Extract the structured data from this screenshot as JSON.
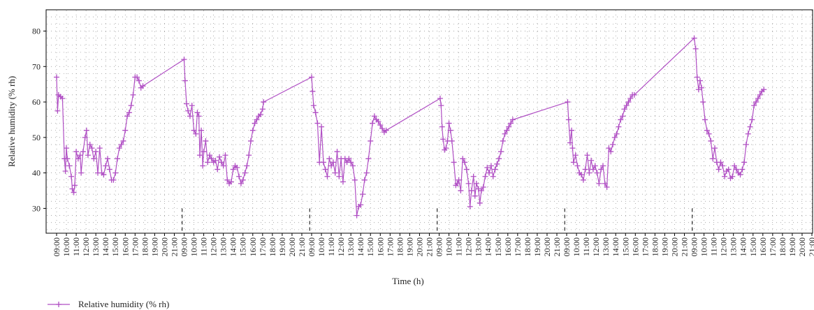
{
  "chart_data": {
    "type": "line",
    "title": "",
    "xlabel": "Time (h)",
    "ylabel": "Relative humidity (% rh)",
    "ylim": [
      23,
      86
    ],
    "y_ticks": [
      30,
      40,
      50,
      60,
      70,
      80
    ],
    "grid": true,
    "legend_position": "bottom-left",
    "line_color": "#b04fc4",
    "x_ticks": [
      "09:00",
      "10:00",
      "11:00",
      "12:00",
      "13:00",
      "14:00",
      "15:00",
      "16:00",
      "17:00",
      "18:00",
      "19:00",
      "20:00",
      "21:00",
      "09:00",
      "10:00",
      "11:00",
      "12:00",
      "13:00",
      "14:00",
      "15:00",
      "16:00",
      "17:00",
      "18:00",
      "19:00",
      "20:00",
      "21:00",
      "09:00",
      "10:00",
      "11:00",
      "12:00",
      "13:00",
      "14:00",
      "15:00",
      "16:00",
      "17:00",
      "18:00",
      "19:00",
      "20:00",
      "21:00",
      "09:00",
      "10:00",
      "11:00",
      "12:00",
      "13:00",
      "14:00",
      "15:00",
      "16:00",
      "17:00",
      "18:00",
      "19:00",
      "20:00",
      "21:00",
      "09:00",
      "10:00",
      "11:00",
      "12:00",
      "13:00",
      "14:00",
      "15:00",
      "16:00",
      "17:00",
      "18:00",
      "19:00",
      "20:00",
      "21:00",
      "09:00",
      "10:00",
      "11:00",
      "12:00",
      "13:00",
      "14:00",
      "15:00",
      "16:00",
      "17:00",
      "18:00",
      "19:00",
      "20:00",
      "21:00"
    ],
    "day_separators": [
      12.8,
      25.8,
      38.8,
      51.8,
      64.8
    ],
    "series": [
      {
        "name": "Relative humidity (% rh)",
        "points": [
          [
            0.0,
            67
          ],
          [
            0.1,
            57.5
          ],
          [
            0.2,
            62
          ],
          [
            0.4,
            61.5
          ],
          [
            0.6,
            61
          ],
          [
            0.8,
            44
          ],
          [
            0.9,
            40.5
          ],
          [
            1.0,
            47
          ],
          [
            1.1,
            44
          ],
          [
            1.3,
            42
          ],
          [
            1.5,
            39
          ],
          [
            1.6,
            35.5
          ],
          [
            1.75,
            34.5
          ],
          [
            1.85,
            36.5
          ],
          [
            2.0,
            46
          ],
          [
            2.2,
            44
          ],
          [
            2.4,
            45
          ],
          [
            2.5,
            40
          ],
          [
            2.7,
            46
          ],
          [
            2.9,
            50
          ],
          [
            3.05,
            52
          ],
          [
            3.2,
            45
          ],
          [
            3.4,
            48
          ],
          [
            3.6,
            47
          ],
          [
            3.8,
            44
          ],
          [
            4.0,
            46
          ],
          [
            4.2,
            40
          ],
          [
            4.4,
            47
          ],
          [
            4.6,
            40
          ],
          [
            4.8,
            39.5
          ],
          [
            5.0,
            42
          ],
          [
            5.2,
            44
          ],
          [
            5.4,
            41
          ],
          [
            5.6,
            38
          ],
          [
            5.8,
            38
          ],
          [
            6.0,
            40
          ],
          [
            6.2,
            44
          ],
          [
            6.4,
            47
          ],
          [
            6.6,
            48
          ],
          [
            6.8,
            49
          ],
          [
            7.0,
            52
          ],
          [
            7.2,
            56
          ],
          [
            7.4,
            57
          ],
          [
            7.6,
            59
          ],
          [
            7.8,
            62
          ],
          [
            8.0,
            67
          ],
          [
            8.2,
            67
          ],
          [
            8.4,
            66
          ],
          [
            8.6,
            64
          ],
          [
            8.8,
            64.5
          ],
          [
            13.0,
            72
          ],
          [
            13.1,
            66
          ],
          [
            13.25,
            59.5
          ],
          [
            13.4,
            57.5
          ],
          [
            13.6,
            56
          ],
          [
            13.8,
            59
          ],
          [
            14.0,
            52
          ],
          [
            14.2,
            51
          ],
          [
            14.35,
            57
          ],
          [
            14.5,
            56
          ],
          [
            14.6,
            45
          ],
          [
            14.75,
            52
          ],
          [
            14.9,
            42
          ],
          [
            15.0,
            46
          ],
          [
            15.2,
            49
          ],
          [
            15.4,
            43
          ],
          [
            15.6,
            45
          ],
          [
            15.8,
            44
          ],
          [
            16.0,
            43
          ],
          [
            16.2,
            43.5
          ],
          [
            16.4,
            41
          ],
          [
            16.6,
            44.5
          ],
          [
            16.8,
            43
          ],
          [
            17.0,
            42
          ],
          [
            17.2,
            45
          ],
          [
            17.4,
            38
          ],
          [
            17.6,
            37
          ],
          [
            17.8,
            37.5
          ],
          [
            18.0,
            41
          ],
          [
            18.2,
            42
          ],
          [
            18.4,
            41.5
          ],
          [
            18.6,
            39
          ],
          [
            18.8,
            37
          ],
          [
            19.0,
            38
          ],
          [
            19.2,
            40
          ],
          [
            19.4,
            42
          ],
          [
            19.6,
            45
          ],
          [
            19.8,
            49
          ],
          [
            20.0,
            52
          ],
          [
            20.2,
            54
          ],
          [
            20.4,
            55
          ],
          [
            20.6,
            56
          ],
          [
            20.8,
            56.5
          ],
          [
            21.0,
            58
          ],
          [
            21.1,
            60
          ],
          [
            26.0,
            67
          ],
          [
            26.1,
            63
          ],
          [
            26.2,
            59
          ],
          [
            26.4,
            57
          ],
          [
            26.6,
            54
          ],
          [
            26.8,
            43
          ],
          [
            27.0,
            53
          ],
          [
            27.2,
            43
          ],
          [
            27.4,
            41
          ],
          [
            27.6,
            39
          ],
          [
            27.8,
            44
          ],
          [
            28.0,
            42
          ],
          [
            28.2,
            43
          ],
          [
            28.4,
            40
          ],
          [
            28.6,
            46
          ],
          [
            28.8,
            39
          ],
          [
            29.0,
            44
          ],
          [
            29.2,
            37.5
          ],
          [
            29.4,
            44
          ],
          [
            29.6,
            43
          ],
          [
            29.8,
            44
          ],
          [
            30.0,
            43
          ],
          [
            30.2,
            42
          ],
          [
            30.4,
            38
          ],
          [
            30.6,
            28
          ],
          [
            30.8,
            30.5
          ],
          [
            31.0,
            31
          ],
          [
            31.2,
            34
          ],
          [
            31.4,
            38
          ],
          [
            31.6,
            40
          ],
          [
            31.8,
            44
          ],
          [
            32.0,
            49
          ],
          [
            32.2,
            54
          ],
          [
            32.4,
            56
          ],
          [
            32.6,
            55
          ],
          [
            32.8,
            54.5
          ],
          [
            33.0,
            53.5
          ],
          [
            33.2,
            52.5
          ],
          [
            33.4,
            51.5
          ],
          [
            33.6,
            52
          ],
          [
            39.1,
            61
          ],
          [
            39.2,
            59
          ],
          [
            39.3,
            53
          ],
          [
            39.4,
            49.5
          ],
          [
            39.55,
            46.5
          ],
          [
            39.7,
            47
          ],
          [
            39.85,
            49
          ],
          [
            40.0,
            54
          ],
          [
            40.15,
            52
          ],
          [
            40.3,
            49
          ],
          [
            40.5,
            43
          ],
          [
            40.7,
            36.5
          ],
          [
            40.85,
            37
          ],
          [
            41.0,
            38
          ],
          [
            41.2,
            35
          ],
          [
            41.4,
            44
          ],
          [
            41.6,
            43
          ],
          [
            41.8,
            41
          ],
          [
            42.0,
            37
          ],
          [
            42.15,
            30.5
          ],
          [
            42.3,
            35
          ],
          [
            42.5,
            39
          ],
          [
            42.65,
            33.5
          ],
          [
            42.8,
            37
          ],
          [
            43.0,
            35.5
          ],
          [
            43.15,
            31.5
          ],
          [
            43.3,
            35
          ],
          [
            43.5,
            36
          ],
          [
            43.7,
            39
          ],
          [
            43.9,
            41.5
          ],
          [
            44.1,
            40
          ],
          [
            44.3,
            42
          ],
          [
            44.5,
            39
          ],
          [
            44.7,
            41
          ],
          [
            44.9,
            42.5
          ],
          [
            45.1,
            44
          ],
          [
            45.3,
            46
          ],
          [
            45.5,
            49
          ],
          [
            45.7,
            51
          ],
          [
            45.9,
            52
          ],
          [
            46.1,
            53
          ],
          [
            46.3,
            54
          ],
          [
            46.5,
            55
          ],
          [
            52.1,
            60
          ],
          [
            52.2,
            55
          ],
          [
            52.35,
            48.5
          ],
          [
            52.5,
            52
          ],
          [
            52.6,
            47
          ],
          [
            52.7,
            43
          ],
          [
            52.9,
            45
          ],
          [
            53.1,
            42
          ],
          [
            53.3,
            40
          ],
          [
            53.5,
            39.5
          ],
          [
            53.7,
            38
          ],
          [
            53.9,
            41
          ],
          [
            54.1,
            45
          ],
          [
            54.3,
            40
          ],
          [
            54.5,
            43.5
          ],
          [
            54.7,
            41
          ],
          [
            54.9,
            42
          ],
          [
            55.1,
            40
          ],
          [
            55.3,
            37
          ],
          [
            55.5,
            41
          ],
          [
            55.7,
            42
          ],
          [
            55.9,
            37
          ],
          [
            56.1,
            36
          ],
          [
            56.3,
            47
          ],
          [
            56.5,
            46
          ],
          [
            56.7,
            48
          ],
          [
            56.9,
            50
          ],
          [
            57.1,
            51
          ],
          [
            57.3,
            53
          ],
          [
            57.5,
            55
          ],
          [
            57.7,
            56
          ],
          [
            57.9,
            58
          ],
          [
            58.1,
            59
          ],
          [
            58.3,
            60
          ],
          [
            58.5,
            61
          ],
          [
            58.7,
            62
          ],
          [
            58.9,
            62
          ],
          [
            65.0,
            78
          ],
          [
            65.15,
            75
          ],
          [
            65.3,
            67
          ],
          [
            65.45,
            63.5
          ],
          [
            65.6,
            66
          ],
          [
            65.75,
            64
          ],
          [
            65.9,
            60
          ],
          [
            66.1,
            55
          ],
          [
            66.3,
            52
          ],
          [
            66.5,
            51
          ],
          [
            66.7,
            49
          ],
          [
            66.9,
            44
          ],
          [
            67.1,
            47
          ],
          [
            67.3,
            43
          ],
          [
            67.5,
            41
          ],
          [
            67.7,
            43
          ],
          [
            67.9,
            42
          ],
          [
            68.1,
            39
          ],
          [
            68.3,
            40.5
          ],
          [
            68.5,
            41
          ],
          [
            68.7,
            38.5
          ],
          [
            68.9,
            39
          ],
          [
            69.1,
            42
          ],
          [
            69.3,
            41
          ],
          [
            69.5,
            40
          ],
          [
            69.7,
            39.5
          ],
          [
            69.9,
            41
          ],
          [
            70.1,
            43
          ],
          [
            70.3,
            48
          ],
          [
            70.5,
            51
          ],
          [
            70.7,
            53
          ],
          [
            70.9,
            55
          ],
          [
            71.1,
            59
          ],
          [
            71.3,
            60
          ],
          [
            71.5,
            61
          ],
          [
            71.7,
            62
          ],
          [
            71.9,
            63
          ],
          [
            72.1,
            63.5
          ]
        ]
      }
    ]
  }
}
